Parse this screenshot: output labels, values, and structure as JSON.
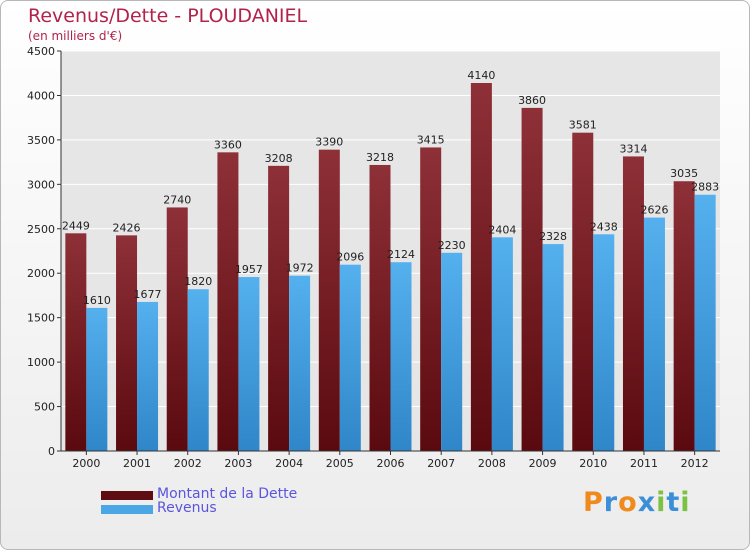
{
  "header": {
    "title": "Revenus/Dette - PLOUDANIEL",
    "subtitle": "(en milliers d'€)"
  },
  "chart_data": {
    "type": "bar",
    "categories": [
      "2000",
      "2001",
      "2002",
      "2003",
      "2004",
      "2005",
      "2006",
      "2007",
      "2008",
      "2009",
      "2010",
      "2011",
      "2012"
    ],
    "series": [
      {
        "name": "Montant de la Dette",
        "values": [
          2449,
          2426,
          2740,
          3360,
          3208,
          3390,
          3218,
          3415,
          4140,
          3860,
          3581,
          3314,
          3035
        ],
        "color": "#7a2128"
      },
      {
        "name": "Revenus",
        "values": [
          1610,
          1677,
          1820,
          1957,
          1972,
          2096,
          2124,
          2230,
          2404,
          2328,
          2438,
          2626,
          2883
        ],
        "color": "#4ba6e6"
      }
    ],
    "ylim": [
      0,
      4500
    ],
    "yticks": [
      0,
      500,
      1000,
      1500,
      2000,
      2500,
      3000,
      3500,
      4000,
      4500
    ],
    "grid": true,
    "legend": "bottom-left"
  },
  "legend": {
    "items": [
      {
        "label": "Montant de la Dette",
        "color": "#5e0e12"
      },
      {
        "label": "Revenus",
        "color": "#4ba6e6"
      }
    ]
  },
  "logo": {
    "letters": [
      "P",
      "r",
      "o",
      "x",
      "i",
      "t",
      "i"
    ],
    "colors": [
      "#f08a1c",
      "#3b8fd9",
      "#f08a1c",
      "#3b8fd9",
      "#7bc243",
      "#3b8fd9",
      "#7bc243"
    ]
  }
}
